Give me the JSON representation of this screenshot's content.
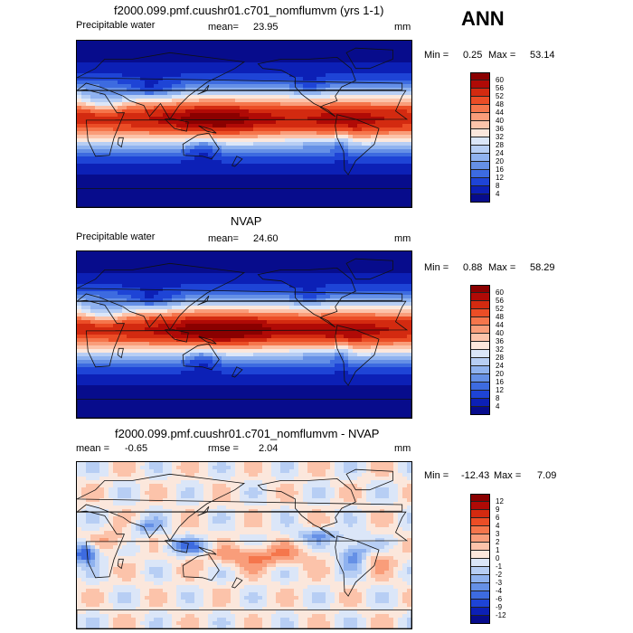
{
  "header": {
    "season": "ANN"
  },
  "chart_data": [
    {
      "type": "heatmap",
      "title": "f2000.099.pmf.cuushr01.c701_nomflumvm (yrs 1-1)",
      "variable": "Precipitable water",
      "mean_label": "mean=",
      "mean": "23.95",
      "units": "mm",
      "min_label": "Min =",
      "min": "0.25",
      "max_label": "Max =",
      "max": "53.14",
      "colorbar_levels": [
        "60",
        "56",
        "52",
        "48",
        "44",
        "40",
        "36",
        "32",
        "28",
        "24",
        "20",
        "16",
        "12",
        "8",
        "4"
      ],
      "colorbar_colors": [
        "#8a0000",
        "#b00a06",
        "#d32a10",
        "#eb4d26",
        "#f5764c",
        "#f99d7a",
        "#fcc3aa",
        "#fbe7dc",
        "#dbe6f8",
        "#b7cef4",
        "#8fb2ef",
        "#6590e6",
        "#3d6be0",
        "#1e44d6",
        "#0c20b6",
        "#070c8c"
      ]
    },
    {
      "type": "heatmap",
      "title": "NVAP",
      "variable": "Precipitable water",
      "mean_label": "mean=",
      "mean": "24.60",
      "units": "mm",
      "min_label": "Min =",
      "min": "0.88",
      "max_label": "Max =",
      "max": "58.29",
      "colorbar_levels": [
        "60",
        "56",
        "52",
        "48",
        "44",
        "40",
        "36",
        "32",
        "28",
        "24",
        "20",
        "16",
        "12",
        "8",
        "4"
      ],
      "colorbar_colors": [
        "#8a0000",
        "#b00a06",
        "#d32a10",
        "#eb4d26",
        "#f5764c",
        "#f99d7a",
        "#fcc3aa",
        "#fbe7dc",
        "#dbe6f8",
        "#b7cef4",
        "#8fb2ef",
        "#6590e6",
        "#3d6be0",
        "#1e44d6",
        "#0c20b6",
        "#070c8c"
      ]
    },
    {
      "type": "heatmap",
      "title": "f2000.099.pmf.cuushr01.c701_nomflumvm - NVAP",
      "mean_label": "mean =",
      "mean": "-0.65",
      "rmse_label": "rmse =",
      "rmse": "2.04",
      "units": "mm",
      "min_label": "Min =",
      "min": "-12.43",
      "max_label": "Max =",
      "max": "7.09",
      "colorbar_levels": [
        "12",
        "9",
        "6",
        "4",
        "3",
        "2",
        "1",
        "0",
        "-1",
        "-2",
        "-3",
        "-4",
        "-6",
        "-9",
        "-12"
      ],
      "colorbar_colors": [
        "#8a0000",
        "#b00a06",
        "#d32a10",
        "#eb4d26",
        "#f5764c",
        "#f99d7a",
        "#fcc3aa",
        "#fbe7dc",
        "#dbe6f8",
        "#b7cef4",
        "#8fb2ef",
        "#6590e6",
        "#3d6be0",
        "#1e44d6",
        "#0c20b6",
        "#070c8c"
      ]
    }
  ]
}
